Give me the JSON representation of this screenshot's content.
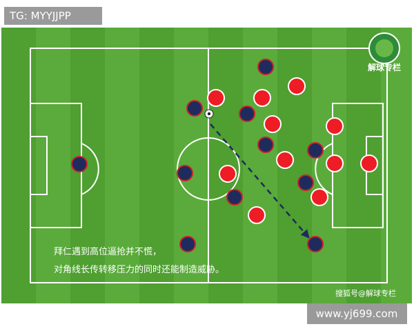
{
  "watermark": "TG: MYYJJPP",
  "logo_label": "解球专栏",
  "caption": [
    "拜仁遇到高位逼抢并不慌，",
    "对角线长传转移压力的同时还能制造威胁。"
  ],
  "credit": "搜狐号@解球专栏",
  "site": "www.yj699.com"
}
